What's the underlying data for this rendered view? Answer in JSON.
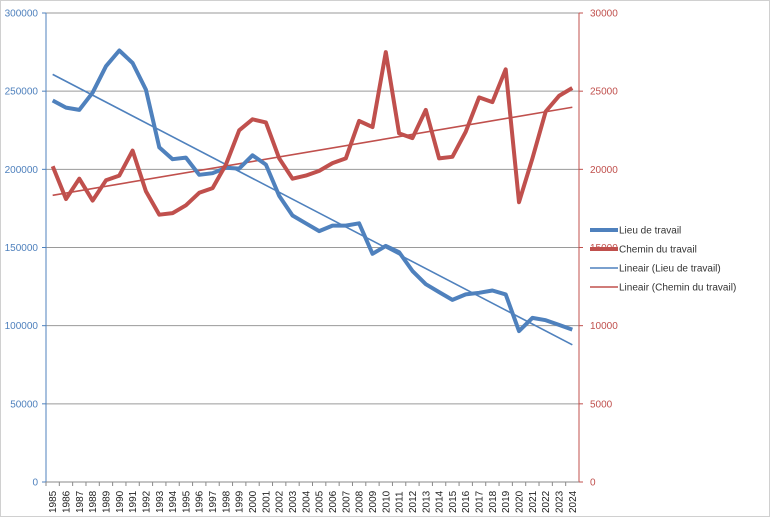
{
  "chart_data": {
    "type": "line",
    "title": "",
    "xlabel": "",
    "ylabel": "",
    "categories": [
      "1985",
      "1986",
      "1987",
      "1988",
      "1989",
      "1990",
      "1991",
      "1992",
      "1993",
      "1994",
      "1995",
      "1996",
      "1997",
      "1998",
      "1999",
      "2000",
      "2001",
      "2002",
      "2003",
      "2004",
      "2005",
      "2006",
      "2007",
      "2008",
      "2009",
      "2010",
      "2011",
      "2012",
      "2013",
      "2014",
      "2015",
      "2016",
      "2017",
      "2018",
      "2019",
      "2020",
      "2021",
      "2022",
      "2023",
      "2024"
    ],
    "y_left": {
      "min": 0,
      "max": 300000,
      "ticks": [
        "0",
        "50000",
        "100000",
        "150000",
        "200000",
        "250000",
        "300000"
      ],
      "color": "#4f81bd"
    },
    "y_right": {
      "min": 0,
      "max": 30000,
      "ticks": [
        "0",
        "5000",
        "10000",
        "15000",
        "20000",
        "25000",
        "30000"
      ],
      "color": "#c0504d"
    },
    "grid": true,
    "legend_position": "right",
    "series": [
      {
        "name": "Lieu de travail",
        "axis": "left",
        "color": "#4f81bd",
        "values": [
          244000,
          239500,
          238000,
          249000,
          266000,
          276000,
          268000,
          251000,
          214000,
          206500,
          207500,
          196500,
          197500,
          201000,
          200500,
          209000,
          203000,
          183000,
          170500,
          165500,
          160500,
          164000,
          164000,
          165500,
          146000,
          151000,
          147000,
          135000,
          126500,
          121500,
          116500,
          120000,
          121000,
          122500,
          120000,
          96500,
          105000,
          103500,
          100500,
          97500
        ]
      },
      {
        "name": "Chemin du travail",
        "axis": "right",
        "color": "#c0504d",
        "values": [
          20200,
          18100,
          19400,
          18000,
          19300,
          19600,
          21200,
          18600,
          17100,
          17200,
          17700,
          18500,
          18800,
          20300,
          22500,
          23200,
          23000,
          20700,
          19400,
          19600,
          19900,
          20400,
          20700,
          23100,
          22700,
          27500,
          22300,
          22000,
          23800,
          20700,
          20800,
          22400,
          24600,
          24300,
          26400,
          17900,
          20700,
          23700,
          24700,
          25200
        ]
      }
    ],
    "trendlines": [
      {
        "name": "Lineair (Lieu de travail)",
        "of": "Lieu de travail",
        "type": "linear",
        "color": "#4f81bd"
      },
      {
        "name": "Lineair (Chemin du travail)",
        "of": "Chemin du travail",
        "type": "linear",
        "color": "#c0504d"
      }
    ]
  }
}
